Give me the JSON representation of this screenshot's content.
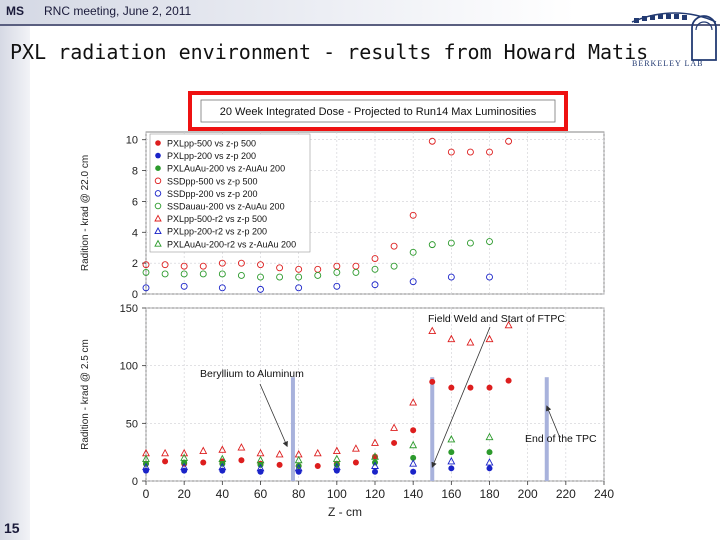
{
  "header": {
    "ms": "MS",
    "meeting": "RNC meeting, June 2, 2011"
  },
  "slide": {
    "title": "PXL radiation environment - results from Howard Matis",
    "page_number": "15"
  },
  "logo": {
    "text": "BERKELEY LAB"
  },
  "colors": {
    "red": "#dd1e1e",
    "blue": "#1a23c8",
    "green": "#2c9a2c",
    "grid": "#cfcfd4",
    "marker_bar": "#a8b2dc",
    "title_box": "#ee1111"
  },
  "chart_data": {
    "type": "scatter",
    "title": "20 Week Integrated Dose - Projected to Run14 Max Luminosities",
    "xlabel": "Z - cm",
    "x_ticks": [
      0,
      20,
      40,
      60,
      80,
      100,
      120,
      140,
      160,
      180,
      200,
      220,
      240
    ],
    "xlim": [
      0,
      240
    ],
    "grid": true,
    "panels": [
      {
        "ylabel": "Radition - krad @ 22.0 cm",
        "ylim": [
          0,
          10.5
        ],
        "y_ticks": [
          0,
          2,
          4,
          6,
          8,
          10
        ],
        "legend": {
          "placement": "top-left",
          "entries": [
            {
              "label": "PXLpp-500 vs z-p 500",
              "marker": "filled-circle",
              "color": "red"
            },
            {
              "label": "PXLpp-200 vs z-p 200",
              "marker": "filled-circle",
              "color": "blue"
            },
            {
              "label": "PXLAuAu-200 vs z-AuAu 200",
              "marker": "filled-circle",
              "color": "green"
            },
            {
              "label": "SSDpp-500 vs z-p 500",
              "marker": "open-circle",
              "color": "red"
            },
            {
              "label": "SSDpp-200 vs z-p 200",
              "marker": "open-circle",
              "color": "blue"
            },
            {
              "label": "SSDauau-200 vs z-AuAu 200",
              "marker": "open-circle",
              "color": "green"
            },
            {
              "label": "PXLpp-500-r2 vs z-p 500",
              "marker": "open-triangle",
              "color": "red"
            },
            {
              "label": "PXLpp-200-r2 vs z-p 200",
              "marker": "open-triangle",
              "color": "blue"
            },
            {
              "label": "PXLAuAu-200-r2 vs z-AuAu 200",
              "marker": "open-triangle",
              "color": "green"
            }
          ]
        },
        "series": [
          {
            "marker": "open-circle",
            "color": "red",
            "x": [
              0,
              10,
              20,
              30,
              40,
              50,
              60,
              70,
              80,
              90,
              100,
              110,
              120,
              130,
              140,
              150,
              160,
              170,
              180,
              190
            ],
            "y": [
              1.9,
              1.9,
              1.8,
              1.8,
              2.0,
              2.0,
              1.9,
              1.7,
              1.6,
              1.6,
              1.8,
              1.8,
              2.3,
              3.1,
              5.1,
              9.9,
              9.2,
              9.2,
              9.2,
              9.9
            ]
          },
          {
            "marker": "open-circle",
            "color": "green",
            "x": [
              0,
              10,
              20,
              30,
              40,
              50,
              60,
              70,
              80,
              90,
              100,
              110,
              120,
              130,
              140,
              150,
              160,
              170,
              180
            ],
            "y": [
              1.4,
              1.3,
              1.3,
              1.3,
              1.3,
              1.2,
              1.1,
              1.1,
              1.1,
              1.2,
              1.4,
              1.4,
              1.6,
              1.8,
              2.7,
              3.2,
              3.3,
              3.3,
              3.4
            ]
          },
          {
            "marker": "open-circle",
            "color": "blue",
            "x": [
              0,
              20,
              40,
              60,
              80,
              100,
              120,
              140,
              160,
              180
            ],
            "y": [
              0.4,
              0.5,
              0.4,
              0.3,
              0.4,
              0.5,
              0.6,
              0.8,
              1.1,
              1.1
            ]
          }
        ]
      },
      {
        "ylabel": "Radition - krad @ 2.5 cm",
        "ylim": [
          0,
          150
        ],
        "y_ticks": [
          0,
          50,
          100,
          150
        ],
        "series": [
          {
            "marker": "open-triangle",
            "color": "red",
            "x": [
              0,
              10,
              20,
              30,
              40,
              50,
              60,
              70,
              80,
              90,
              100,
              110,
              120,
              130,
              140,
              150,
              160,
              170,
              180,
              190
            ],
            "y": [
              24,
              24,
              24,
              26,
              27,
              29,
              24,
              23,
              23,
              24,
              26,
              28,
              33,
              46,
              68,
              130,
              123,
              120,
              123,
              135
            ]
          },
          {
            "marker": "filled-circle",
            "color": "red",
            "x": [
              0,
              10,
              20,
              30,
              40,
              50,
              60,
              70,
              80,
              90,
              100,
              110,
              120,
              130,
              140,
              150,
              160,
              170,
              180,
              190
            ],
            "y": [
              15,
              17,
              15,
              16,
              17,
              18,
              15,
              14,
              13,
              13,
              15,
              16,
              21,
              33,
              44,
              86,
              81,
              81,
              81,
              87
            ]
          },
          {
            "marker": "open-triangle",
            "color": "green",
            "x": [
              0,
              20,
              40,
              60,
              80,
              100,
              120,
              140,
              160,
              180
            ],
            "y": [
              19,
              20,
              19,
              18,
              18,
              19,
              21,
              31,
              36,
              38
            ]
          },
          {
            "marker": "filled-circle",
            "color": "green",
            "x": [
              0,
              20,
              40,
              60,
              80,
              100,
              120,
              140,
              160,
              180
            ],
            "y": [
              15,
              16,
              15,
              14,
              13,
              14,
              16,
              20,
              25,
              25
            ]
          },
          {
            "marker": "open-triangle",
            "color": "blue",
            "x": [
              0,
              20,
              40,
              60,
              80,
              100,
              120,
              140,
              160,
              180
            ],
            "y": [
              12,
              12,
              12,
              11,
              11,
              12,
              13,
              15,
              17,
              16
            ]
          },
          {
            "marker": "filled-circle",
            "color": "blue",
            "x": [
              0,
              20,
              40,
              60,
              80,
              100,
              120,
              140,
              160,
              180
            ],
            "y": [
              9,
              9,
              9,
              8,
              8,
              9,
              8,
              8,
              11,
              11
            ]
          }
        ],
        "vertical_markers": [
          77,
          150,
          210
        ],
        "annotations": [
          {
            "text": "Beryllium to Aluminum",
            "arrow_to": [
              74,
              30
            ]
          },
          {
            "text": "Field Weld and Start of FTPC",
            "arrow_to": [
              150,
              12
            ]
          },
          {
            "text": "End of the TPC",
            "arrow_to": [
              210,
              65
            ]
          }
        ]
      }
    ]
  }
}
